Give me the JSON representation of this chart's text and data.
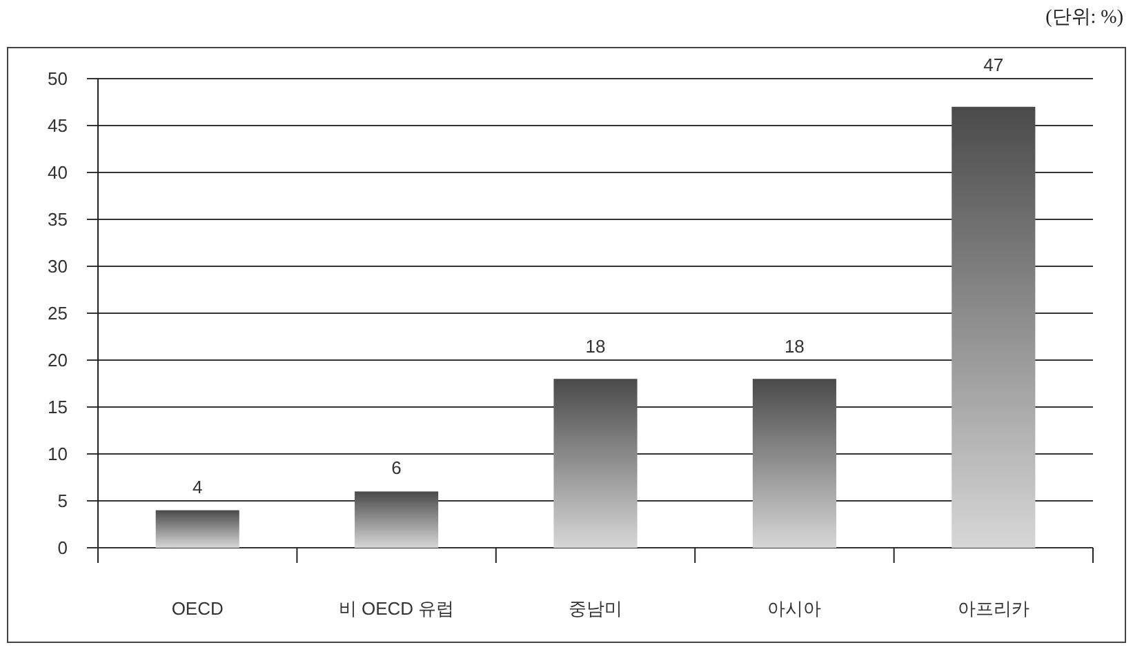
{
  "chart_data": {
    "type": "bar",
    "categories": [
      "OECD",
      "비 OECD 유럽",
      "중남미",
      "아시아",
      "아프리카"
    ],
    "values": [
      4,
      6,
      18,
      18,
      47
    ],
    "color": "#4a4a4a",
    "ylim": [
      0,
      50
    ],
    "yticks": [
      0,
      5,
      10,
      15,
      20,
      25,
      30,
      35,
      40,
      45,
      50
    ],
    "grid": "y",
    "data_labels": true,
    "annotations": [
      "(단위: %)"
    ]
  }
}
